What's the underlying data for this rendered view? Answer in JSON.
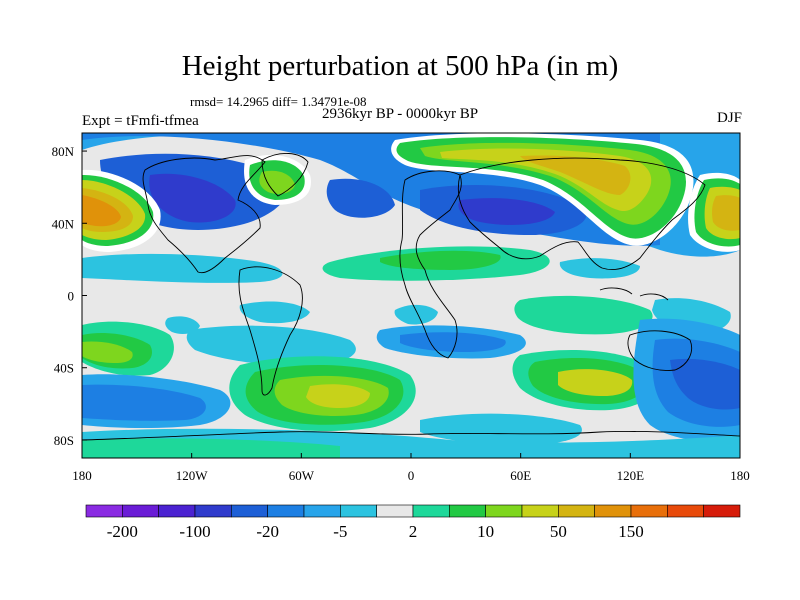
{
  "title": "Height perturbation at 500 hPa (in m)",
  "subtitle_stats": "rmsd= 14.2965 diff= 1.34791e-08",
  "period": "2936kyr BP - 0000kyr BP",
  "experiment": "Expt = tFmfi-tfmea",
  "season": "DJF",
  "map": {
    "projection": "cylindrical-equidistant",
    "lon_range": [
      -180,
      180
    ],
    "lat_range": [
      -90,
      90
    ],
    "x_ticks": [
      "180",
      "120W",
      "60W",
      "0",
      "60E",
      "120E",
      "180"
    ],
    "y_ticks": [
      "80N",
      "40N",
      "0",
      "40S",
      "80S"
    ]
  },
  "colorbar": {
    "labels": [
      "-200",
      "-100",
      "-20",
      "-5",
      "2",
      "10",
      "50",
      "150"
    ],
    "colors": [
      "#8a2be2",
      "#6a1cd6",
      "#4b22d1",
      "#2f3bcc",
      "#1d5fd6",
      "#1d7fe3",
      "#27a4ea",
      "#2cc3e0",
      "#e8e8e8",
      "#1ed89a",
      "#22c944",
      "#7ed61e",
      "#c7d21a",
      "#d4b412",
      "#e0920a",
      "#e86f0a",
      "#e84a0a",
      "#d61c0a"
    ]
  }
}
